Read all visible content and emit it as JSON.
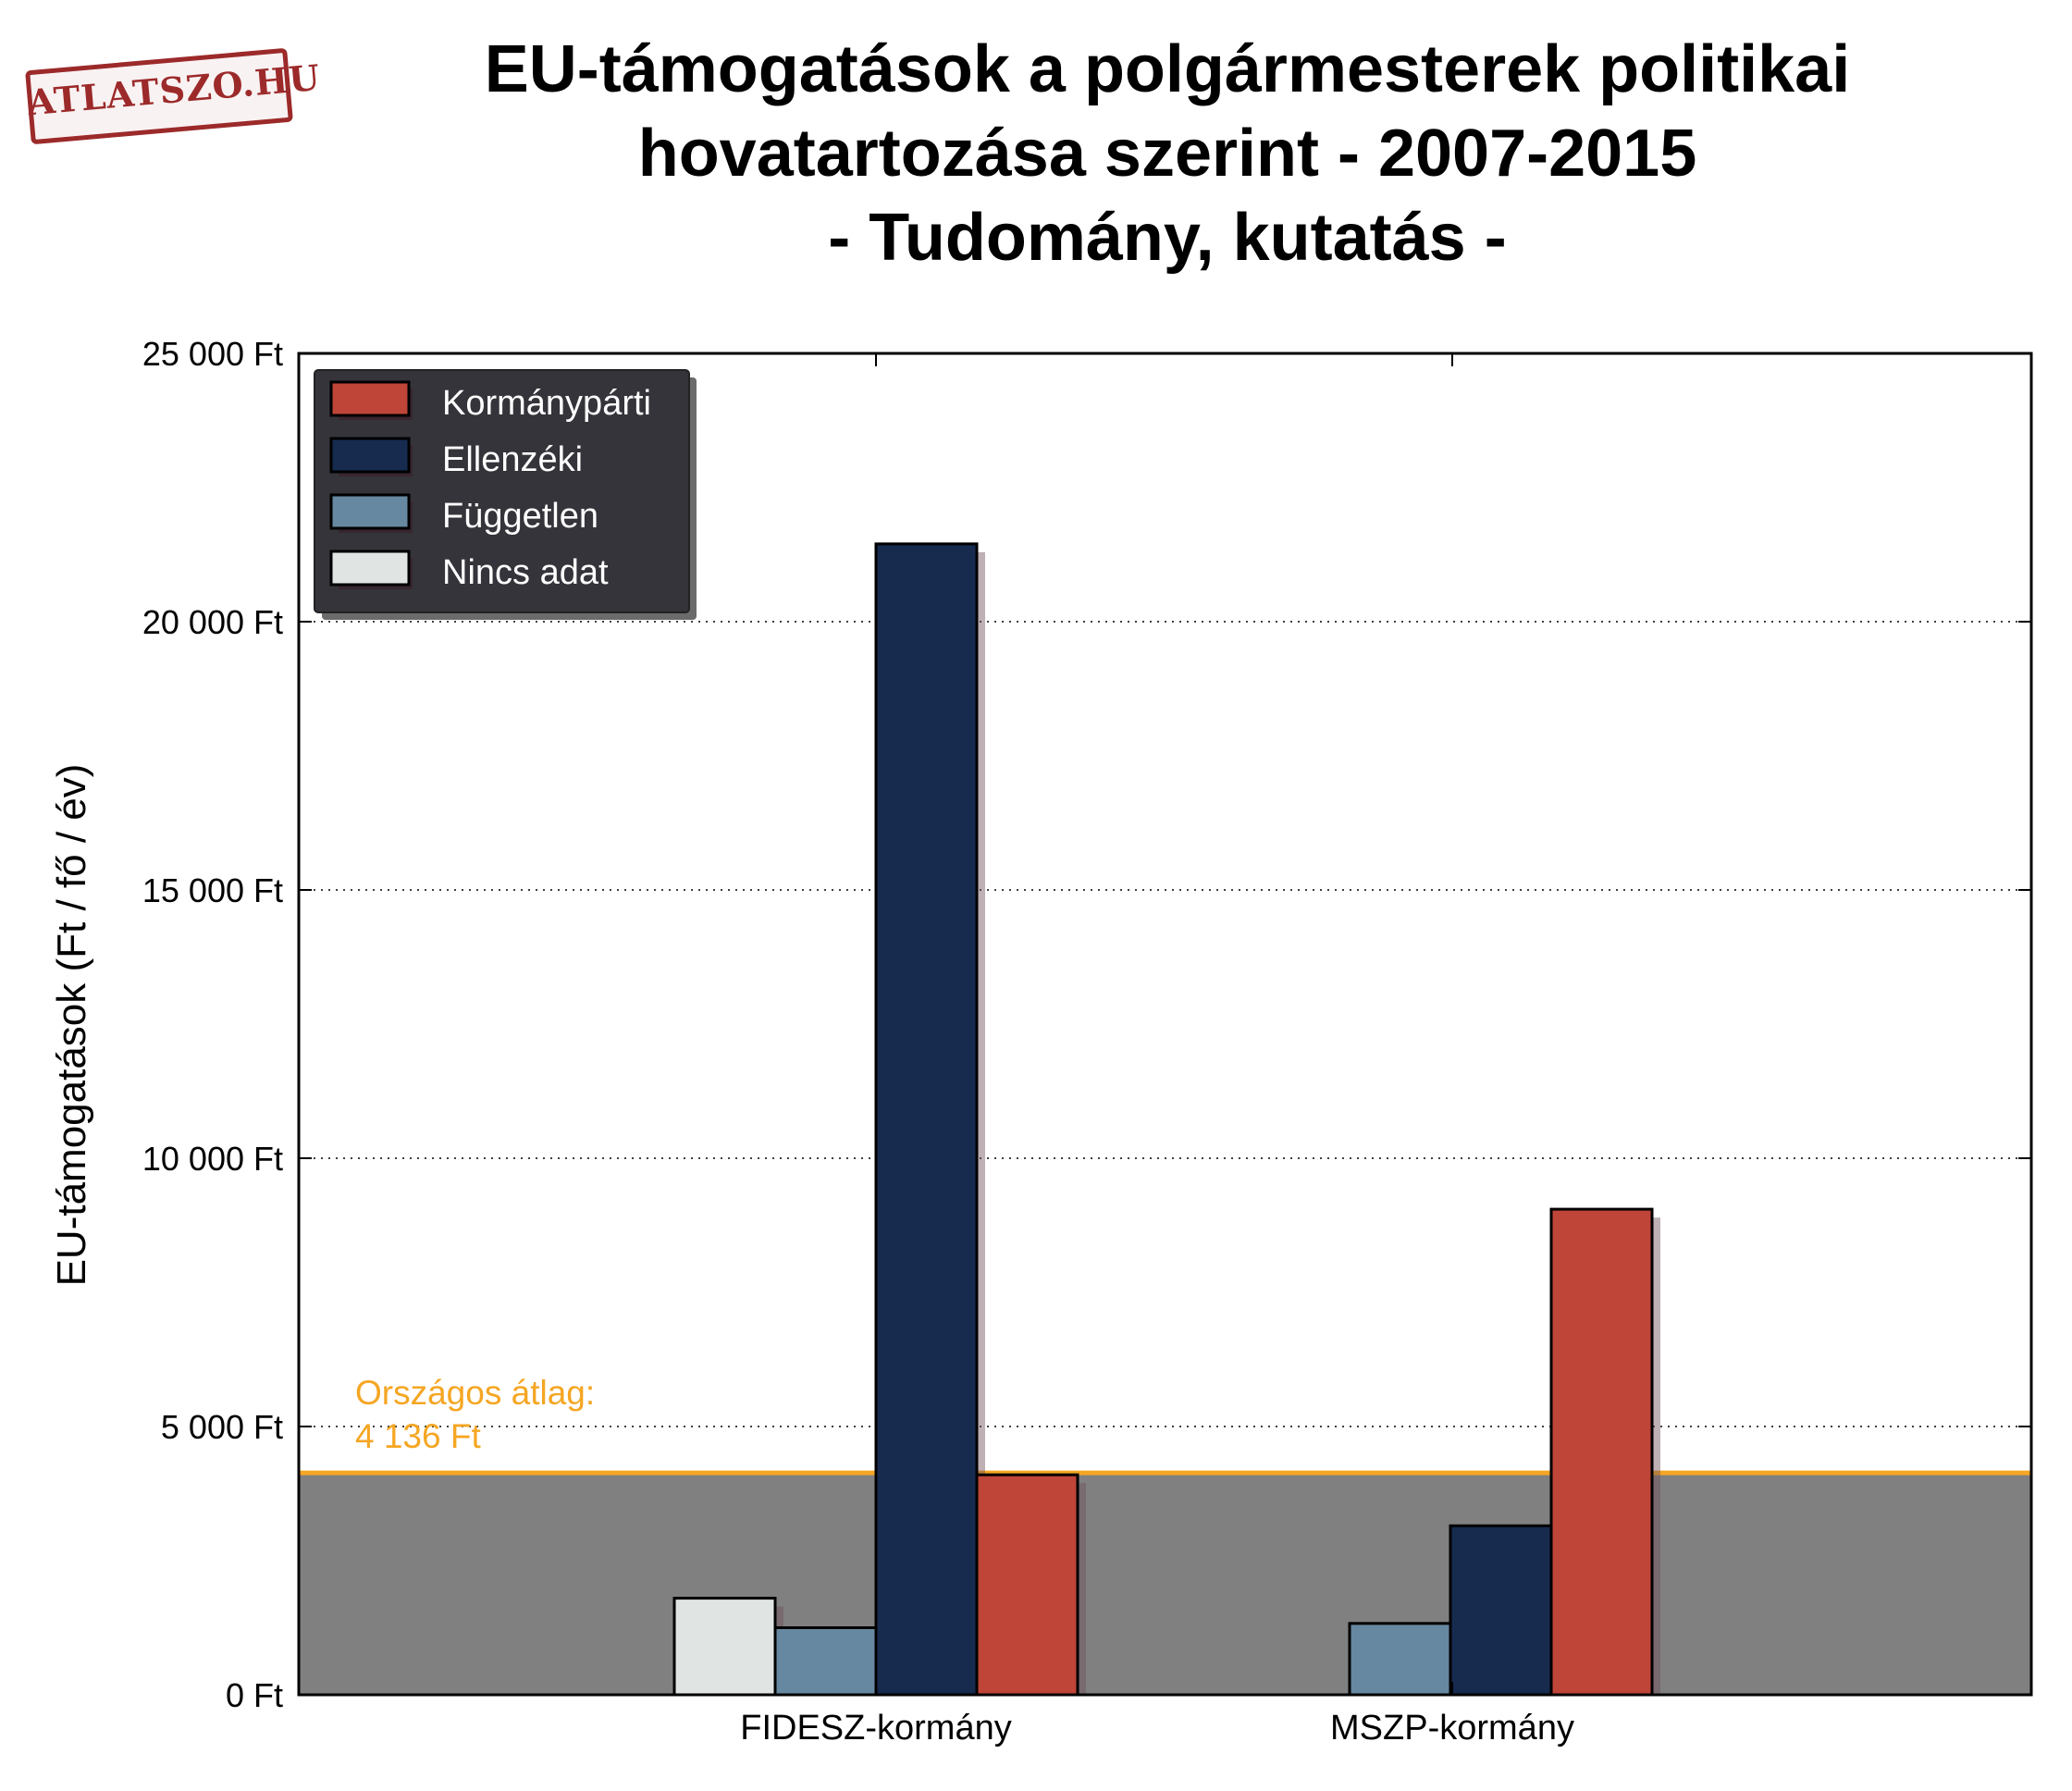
{
  "logo": {
    "text": "ATLATSZO.HU",
    "color": "#9c2a2a"
  },
  "chart_data": {
    "type": "bar",
    "title": [
      "EU-támogatások a polgármesterek politikai",
      "hovatartozása szerint - 2007-2015",
      "- Tudomány, kutatás -"
    ],
    "ylabel": "EU-támogatások (Ft / fő / év)",
    "xlabel": "",
    "ylim": [
      0,
      25000
    ],
    "yticks": [
      0,
      5000,
      10000,
      15000,
      20000,
      25000
    ],
    "ytick_labels": [
      "0 Ft",
      "5 000 Ft",
      "10 000 Ft",
      "15 000 Ft",
      "20 000 Ft",
      "25 000 Ft"
    ],
    "grid": "horizontal dotted",
    "legend_position": "top-left",
    "categories": [
      "FIDESZ-kormány",
      "MSZP-kormány"
    ],
    "series": [
      {
        "name": "Kormánypárti",
        "color": "#be4538",
        "values": [
          4100,
          9050
        ]
      },
      {
        "name": "Ellenzéki",
        "color": "#172b4f",
        "values": [
          21450,
          3150
        ]
      },
      {
        "name": "Független",
        "color": "#6688a0",
        "values": [
          1250,
          1330
        ]
      },
      {
        "name": "Nincs adat",
        "color": "#e0e5e3",
        "values": [
          1800,
          null
        ]
      }
    ],
    "bar_order": {
      "FIDESZ-kormány": [
        "Nincs adat",
        "Független",
        "Ellenzéki",
        "Kormánypárti"
      ],
      "MSZP-kormány": [
        "Független",
        "Ellenzéki",
        "Kormánypárti"
      ]
    },
    "reference_line": {
      "value": 4136,
      "label_line1": "Országos átlag:",
      "label_line2": "4 136 Ft",
      "color": "#f5a623",
      "band_color": "#808080"
    }
  }
}
